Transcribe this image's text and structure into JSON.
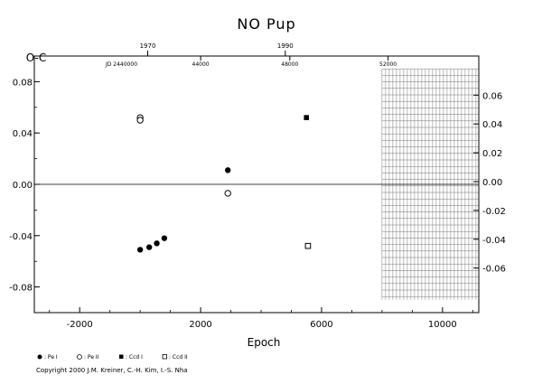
{
  "chart_data": {
    "type": "scatter",
    "title": "NO Pup",
    "xlabel": "Epoch",
    "ylabel": "O-C",
    "xlim": [
      -3500,
      11200
    ],
    "ylim": [
      -0.1,
      0.1
    ],
    "x_ticks": [
      -2000,
      2000,
      6000,
      10000
    ],
    "x_tick_labels": [
      "-2000",
      "2000",
      "6000",
      "10000"
    ],
    "y_ticks": [
      -0.08,
      -0.04,
      0.0,
      0.04,
      0.08
    ],
    "y_tick_labels": [
      "-0.08",
      "-0.04",
      "0.00",
      "0.04",
      "0.08"
    ],
    "y2_ticks": [
      -0.06,
      -0.04,
      -0.02,
      0.0,
      0.02,
      0.04,
      0.06
    ],
    "y2_tick_labels": [
      "-0.06",
      "-0.04",
      "-0.02",
      "0.00",
      "0.02",
      "0.04",
      "0.06"
    ],
    "top_year_ticks": [
      {
        "x": 250,
        "label": "1970"
      },
      {
        "x": 4800,
        "label": "1990"
      }
    ],
    "top_jd_prefix": "JD 2440000",
    "top_jd_ticks": [
      {
        "x": 2000,
        "label": "44000"
      },
      {
        "x": 4950,
        "label": "48000"
      },
      {
        "x": 8200,
        "label": "52000"
      }
    ],
    "grid_region": {
      "x_from": 8000,
      "x_to": 11200,
      "y_from": -0.09,
      "y_to": 0.09
    },
    "zero_line": true,
    "series": [
      {
        "name": "Pe I",
        "marker": "filled-circle",
        "points": [
          [
            0,
            -0.051
          ],
          [
            300,
            -0.049
          ],
          [
            550,
            -0.046
          ],
          [
            800,
            -0.042
          ],
          [
            2900,
            0.011
          ]
        ]
      },
      {
        "name": "Pe II",
        "marker": "open-circle",
        "points": [
          [
            0,
            0.052
          ],
          [
            0,
            0.05
          ],
          [
            2900,
            -0.007
          ]
        ]
      },
      {
        "name": "Ccd I",
        "marker": "filled-square",
        "points": [
          [
            5500,
            0.052
          ]
        ]
      },
      {
        "name": "Ccd II",
        "marker": "open-square",
        "points": [
          [
            5550,
            -0.048
          ]
        ]
      }
    ]
  },
  "legend": {
    "items": [
      {
        "label": ": Pe I"
      },
      {
        "label": ": Pe II"
      },
      {
        "label": ": Ccd I"
      },
      {
        "label": ": Ccd II"
      }
    ]
  },
  "copyright": "Copyright 2000 J.M. Kreiner, C.-H. Kim, I.-S. Nha"
}
